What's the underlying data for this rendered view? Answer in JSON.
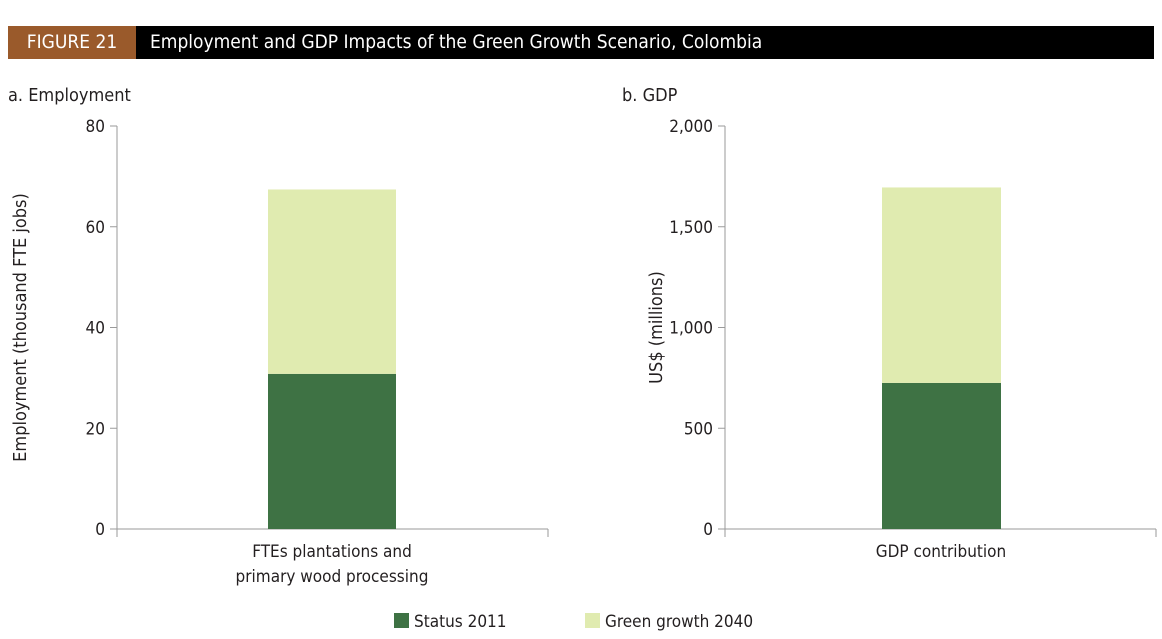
{
  "header": {
    "figure_label": "FIGURE 21",
    "title": "Employment and GDP Impacts of the Green Growth Scenario, Colombia"
  },
  "colors": {
    "status_2011": "#3e7244",
    "green_growth_2040": "#e0ebb0",
    "axis": "#9a9a9a",
    "header_label_bg": "#9a5a2b"
  },
  "chart_data": [
    {
      "type": "bar",
      "stacked": true,
      "panel_label": "a. Employment",
      "ylabel": "Employment (thousand FTE jobs)",
      "categories": [
        [
          "FTEs plantations and",
          "primary wood processing"
        ]
      ],
      "ylim": [
        0,
        80
      ],
      "yticks": [
        0,
        20,
        40,
        60,
        80
      ],
      "ytick_labels": [
        "0",
        "20",
        "40",
        "60",
        "80"
      ],
      "series": [
        {
          "name": "Status 2011",
          "values": [
            30.8
          ]
        },
        {
          "name": "Green growth 2040",
          "values": [
            36.6
          ]
        }
      ]
    },
    {
      "type": "bar",
      "stacked": true,
      "panel_label": "b. GDP",
      "ylabel": "US$ (millions)",
      "categories": [
        [
          "GDP contribution"
        ]
      ],
      "ylim": [
        0,
        2000
      ],
      "yticks": [
        0,
        500,
        1000,
        1500,
        2000
      ],
      "ytick_labels": [
        "0",
        "500",
        "1,000",
        "1,500",
        "2,000"
      ],
      "series": [
        {
          "name": "Status 2011",
          "values": [
            725
          ]
        },
        {
          "name": "Green growth 2040",
          "values": [
            970
          ]
        }
      ]
    }
  ],
  "legend": {
    "placement": "bottom-center",
    "items": [
      "Status 2011",
      "Green growth 2040"
    ]
  }
}
